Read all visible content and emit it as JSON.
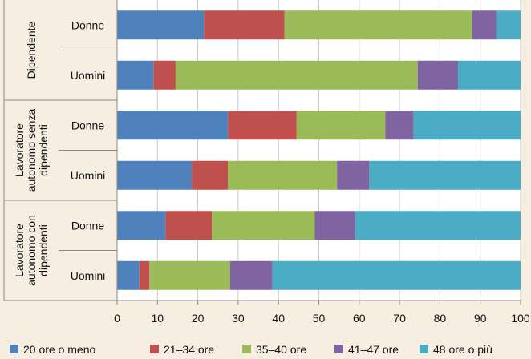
{
  "chart_data": {
    "type": "bar",
    "orientation": "horizontal",
    "stacked": true,
    "groups": [
      {
        "label": "Dipendente",
        "label_lines": [
          "Dipendente"
        ]
      },
      {
        "label": "Lavoratore autonomo senza dipendenti",
        "label_lines": [
          "Lavoratore",
          "autonomo senza",
          "dipendenti"
        ]
      },
      {
        "label": "Lavoratore autonomo con dipendenti",
        "label_lines": [
          "Lavoratore",
          "autonomo con",
          "dipendenti"
        ]
      }
    ],
    "categories": [
      "Donne",
      "Uomini",
      "Donne",
      "Uomini",
      "Donne",
      "Uomini"
    ],
    "category_group": [
      0,
      0,
      1,
      1,
      2,
      2
    ],
    "series": [
      {
        "name": "20 ore o meno",
        "color": "#4f81bd",
        "values": [
          21.5,
          9,
          27.5,
          18.5,
          12,
          5.5
        ]
      },
      {
        "name": "21–34 ore",
        "color": "#c0504d",
        "values": [
          20,
          5.5,
          17,
          9,
          11.5,
          2.5
        ]
      },
      {
        "name": "35–40 ore",
        "color": "#9bbb59",
        "values": [
          46.5,
          60,
          22,
          27,
          25.5,
          20
        ]
      },
      {
        "name": "41–47 ore",
        "color": "#8064a2",
        "values": [
          6,
          10,
          7,
          8,
          10,
          10.5
        ]
      },
      {
        "name": "48 ore o più",
        "color": "#4bacc6",
        "values": [
          6,
          15.5,
          26.5,
          37.5,
          41,
          61.5
        ]
      }
    ],
    "x_ticks": [
      "0",
      "10",
      "20",
      "30",
      "40",
      "50",
      "60",
      "70",
      "80",
      "90",
      "100"
    ],
    "xlim": [
      0,
      100
    ],
    "grid": "vertical",
    "legend": "bottom"
  }
}
